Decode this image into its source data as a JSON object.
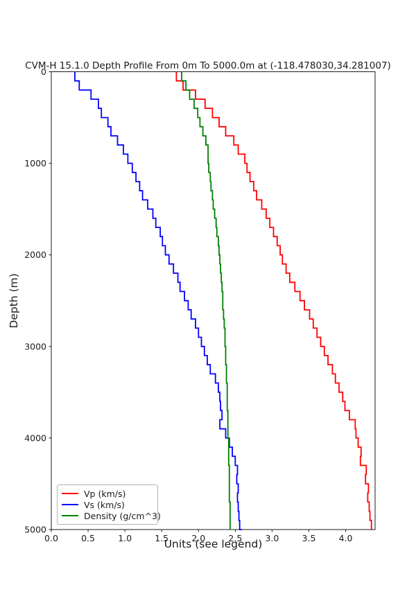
{
  "chart_data": {
    "type": "line",
    "title": "CVM-H 15.1.0 Depth Profile From 0m To 5000.0m at (-118.478030,34.281007)",
    "xlabel": "Units (see legend)",
    "ylabel": "Depth (m)",
    "xlim": [
      0.0,
      4.4
    ],
    "ylim": [
      0,
      5000
    ],
    "y_axis_inverted": true,
    "grid": false,
    "legend_position": "lower left",
    "x_tick_labels": [
      "0.0",
      "0.5",
      "1.0",
      "1.5",
      "2.0",
      "2.5",
      "3.0",
      "3.5",
      "4.0"
    ],
    "y_tick_labels": [
      "0",
      "1000",
      "2000",
      "3000",
      "4000",
      "5000"
    ],
    "depths_m": [
      0,
      100,
      200,
      300,
      400,
      500,
      600,
      700,
      800,
      900,
      1000,
      1100,
      1200,
      1300,
      1400,
      1500,
      1600,
      1700,
      1800,
      1900,
      2000,
      2100,
      2200,
      2300,
      2400,
      2500,
      2600,
      2700,
      2800,
      2900,
      3000,
      3100,
      3200,
      3300,
      3400,
      3500,
      3600,
      3700,
      3800,
      3900,
      4000,
      4100,
      4200,
      4300,
      4400,
      4500,
      4600,
      4700,
      4800,
      4900,
      5000
    ],
    "series": [
      {
        "name": "Vp (km/s)",
        "color": "#ff0000",
        "values": [
          1.7,
          1.79,
          1.96,
          2.09,
          2.19,
          2.28,
          2.37,
          2.48,
          2.54,
          2.63,
          2.66,
          2.7,
          2.75,
          2.79,
          2.86,
          2.92,
          2.97,
          3.02,
          3.07,
          3.11,
          3.14,
          3.19,
          3.24,
          3.31,
          3.38,
          3.44,
          3.51,
          3.56,
          3.61,
          3.66,
          3.71,
          3.76,
          3.82,
          3.86,
          3.91,
          3.96,
          3.99,
          4.05,
          4.13,
          4.14,
          4.17,
          4.21,
          4.2,
          4.28,
          4.27,
          4.31,
          4.3,
          4.32,
          4.33,
          4.35,
          4.36
        ]
      },
      {
        "name": "Vs (km/s)",
        "color": "#0000ff",
        "values": [
          0.32,
          0.38,
          0.54,
          0.64,
          0.68,
          0.77,
          0.81,
          0.9,
          0.98,
          1.04,
          1.1,
          1.15,
          1.2,
          1.24,
          1.31,
          1.38,
          1.42,
          1.48,
          1.51,
          1.55,
          1.6,
          1.66,
          1.72,
          1.75,
          1.81,
          1.86,
          1.9,
          1.96,
          2.0,
          2.04,
          2.08,
          2.12,
          2.16,
          2.23,
          2.27,
          2.29,
          2.3,
          2.32,
          2.29,
          2.37,
          2.42,
          2.46,
          2.5,
          2.53,
          2.52,
          2.54,
          2.53,
          2.54,
          2.55,
          2.56,
          2.59
        ]
      },
      {
        "name": "Density (g/cm^3)",
        "color": "#008000",
        "values": [
          1.77,
          1.83,
          1.88,
          1.94,
          1.99,
          2.02,
          2.06,
          2.1,
          2.13,
          2.13,
          2.14,
          2.16,
          2.17,
          2.19,
          2.2,
          2.22,
          2.24,
          2.25,
          2.27,
          2.28,
          2.29,
          2.3,
          2.31,
          2.32,
          2.33,
          2.33,
          2.34,
          2.35,
          2.36,
          2.36,
          2.37,
          2.37,
          2.38,
          2.38,
          2.39,
          2.39,
          2.39,
          2.4,
          2.4,
          2.4,
          2.41,
          2.41,
          2.41,
          2.42,
          2.42,
          2.42,
          2.42,
          2.43,
          2.43,
          2.43,
          2.43
        ]
      }
    ]
  }
}
